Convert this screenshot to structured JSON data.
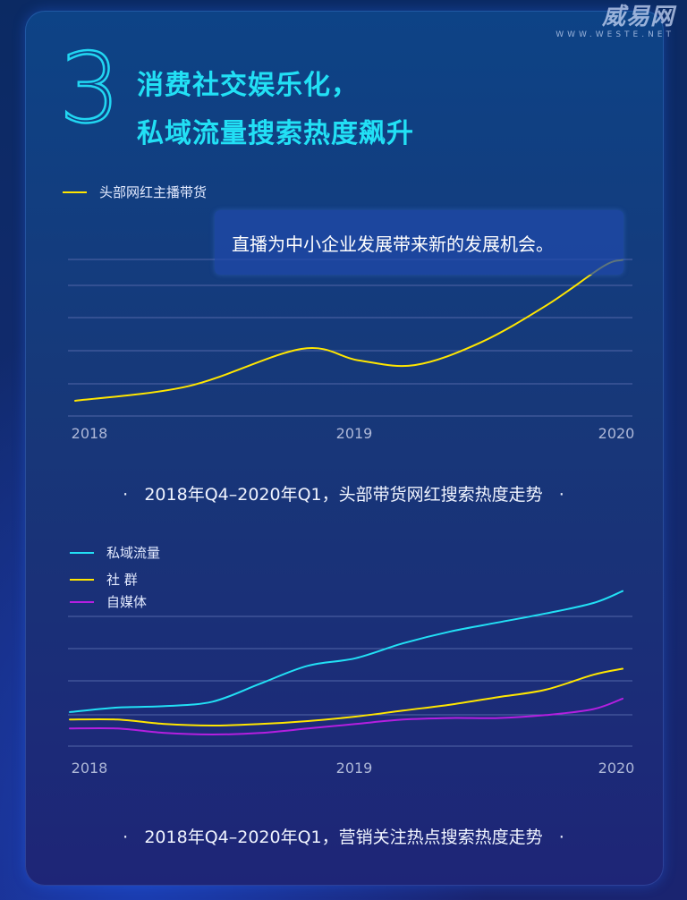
{
  "header": {
    "number": "3",
    "title_line1": "消费社交娱乐化，",
    "title_line2": "私域流量搜索热度飙升"
  },
  "watermark": {
    "logo": "威易网",
    "url": "WWW.WESTE.NET"
  },
  "callout": "直播为中小企业发展带来新的发展机会。",
  "colors": {
    "cyan": "#22e0f5",
    "yellow": "#ffe600",
    "purple": "#b41fe0",
    "grid": "#5266a8",
    "tick": "#aeb8d8"
  },
  "chart_data": [
    {
      "type": "line",
      "title": "2018年Q4–2020年Q1，头部带货网红搜索热度走势",
      "x_tick_labels": [
        "2018",
        "2019",
        "2020"
      ],
      "xlim": [
        0,
        6
      ],
      "ylim": [
        0,
        100
      ],
      "grid": true,
      "legend_position": "top-left",
      "series": [
        {
          "name": "头部网红主播带货",
          "color": "#ffe600",
          "x": [
            0,
            1.2,
            2.4,
            3.0,
            3.6,
            4.3,
            5.0,
            5.6,
            5.9
          ],
          "values": [
            5,
            14,
            37,
            30,
            27,
            41,
            64,
            88,
            92
          ]
        }
      ]
    },
    {
      "type": "line",
      "title": "2018年Q4–2020年Q1，营销关注热点搜索热度走势",
      "x_tick_labels": [
        "2018",
        "2019",
        "2020"
      ],
      "xlim": [
        0,
        6
      ],
      "ylim": [
        0,
        100
      ],
      "grid": true,
      "legend_position": "top-left",
      "series": [
        {
          "name": "私域流量",
          "color": "#22e0f5",
          "x": [
            0,
            0.5,
            1.0,
            1.5,
            2.0,
            2.5,
            3.0,
            3.5,
            4.0,
            4.5,
            5.0,
            5.5,
            5.9
          ],
          "values": [
            18,
            21,
            22,
            25,
            37,
            49,
            54,
            64,
            72,
            78,
            84,
            91,
            99
          ]
        },
        {
          "name": "社 群",
          "color": "#ffe600",
          "x": [
            0,
            0.5,
            1.0,
            1.5,
            2.0,
            2.5,
            3.0,
            3.5,
            4.0,
            4.5,
            5.0,
            5.5,
            5.9
          ],
          "values": [
            13,
            13,
            10,
            9,
            10,
            12,
            15,
            19,
            23,
            28,
            33,
            43,
            47
          ]
        },
        {
          "name": "自媒体",
          "color": "#b41fe0",
          "x": [
            0,
            0.5,
            1.0,
            1.5,
            2.0,
            2.5,
            3.0,
            3.5,
            4.0,
            4.5,
            5.0,
            5.5,
            5.9
          ],
          "values": [
            7,
            7,
            4,
            3,
            4,
            7,
            10,
            13,
            14,
            14,
            16,
            20,
            27
          ]
        }
      ]
    }
  ]
}
